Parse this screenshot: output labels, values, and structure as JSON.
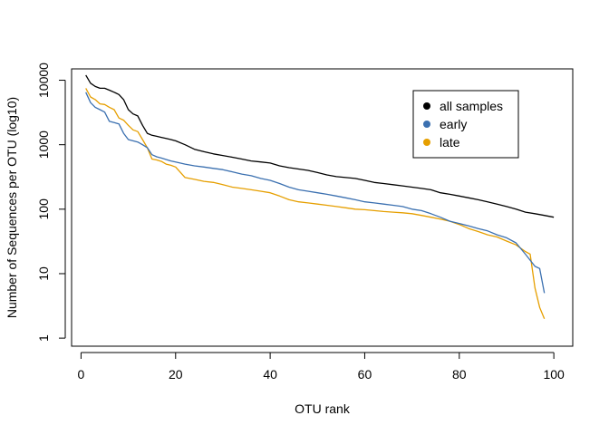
{
  "chart_data": {
    "type": "line",
    "title": "",
    "xlabel": "OTU rank",
    "ylabel": "Number of Sequences per OTU (log10)",
    "xlim": [
      -2,
      104
    ],
    "ylim": [
      0.75,
      15000
    ],
    "y_scale": "log10",
    "x_ticks": [
      0,
      20,
      40,
      60,
      80,
      100
    ],
    "y_ticks": [
      1,
      10,
      100,
      1000,
      10000
    ],
    "y_tick_labels": [
      "1",
      "10",
      "100",
      "1000",
      "10000"
    ],
    "grid": false,
    "legend_position": "top-right",
    "series": [
      {
        "name": "all samples",
        "color": "#000000",
        "x": [
          1,
          2,
          3,
          4,
          5,
          6,
          7,
          8,
          9,
          10,
          11,
          12,
          13,
          14,
          15,
          16,
          17,
          18,
          19,
          20,
          22,
          24,
          26,
          28,
          30,
          32,
          34,
          36,
          38,
          40,
          42,
          44,
          46,
          48,
          50,
          52,
          54,
          56,
          58,
          60,
          62,
          64,
          66,
          68,
          70,
          72,
          74,
          76,
          78,
          80,
          82,
          84,
          86,
          88,
          90,
          92,
          94,
          96,
          98,
          100
        ],
        "values": [
          12000,
          9000,
          8000,
          7500,
          7500,
          7000,
          6500,
          6000,
          5000,
          3500,
          3000,
          2800,
          2000,
          1500,
          1400,
          1350,
          1300,
          1250,
          1200,
          1150,
          1000,
          850,
          780,
          720,
          680,
          640,
          600,
          560,
          540,
          520,
          470,
          440,
          420,
          400,
          370,
          340,
          320,
          310,
          300,
          280,
          260,
          250,
          240,
          230,
          220,
          210,
          200,
          180,
          170,
          160,
          150,
          140,
          130,
          120,
          110,
          100,
          90,
          85,
          80,
          75
        ]
      },
      {
        "name": "early",
        "color": "#3b70b0",
        "x": [
          1,
          2,
          3,
          4,
          5,
          6,
          7,
          8,
          9,
          10,
          11,
          12,
          13,
          14,
          15,
          16,
          17,
          18,
          19,
          20,
          22,
          24,
          26,
          28,
          30,
          32,
          34,
          36,
          38,
          40,
          42,
          44,
          46,
          48,
          50,
          52,
          54,
          56,
          58,
          60,
          62,
          64,
          66,
          68,
          70,
          72,
          74,
          76,
          78,
          80,
          82,
          84,
          86,
          88,
          90,
          92,
          94,
          96,
          97,
          98
        ],
        "values": [
          6500,
          4500,
          3800,
          3500,
          3200,
          2300,
          2200,
          2100,
          1500,
          1200,
          1150,
          1100,
          1000,
          900,
          700,
          650,
          620,
          590,
          560,
          540,
          500,
          470,
          450,
          430,
          410,
          380,
          350,
          330,
          300,
          280,
          250,
          220,
          200,
          190,
          180,
          170,
          160,
          150,
          140,
          130,
          125,
          120,
          115,
          110,
          100,
          95,
          85,
          75,
          65,
          60,
          55,
          50,
          46,
          40,
          36,
          30,
          20,
          13,
          12,
          5
        ]
      },
      {
        "name": "late",
        "color": "#e69f00",
        "x": [
          1,
          2,
          3,
          4,
          5,
          6,
          7,
          8,
          9,
          10,
          11,
          12,
          13,
          14,
          15,
          16,
          17,
          18,
          19,
          20,
          22,
          24,
          26,
          28,
          30,
          32,
          34,
          36,
          38,
          40,
          42,
          44,
          46,
          48,
          50,
          52,
          54,
          56,
          58,
          60,
          62,
          64,
          66,
          68,
          70,
          72,
          74,
          76,
          78,
          80,
          82,
          84,
          86,
          88,
          90,
          92,
          94,
          95,
          96,
          97,
          98
        ],
        "values": [
          7500,
          5500,
          5000,
          4300,
          4200,
          3800,
          3500,
          2600,
          2400,
          2000,
          1700,
          1600,
          1200,
          900,
          600,
          580,
          550,
          500,
          480,
          450,
          310,
          290,
          270,
          260,
          240,
          220,
          210,
          200,
          190,
          180,
          160,
          140,
          130,
          125,
          120,
          115,
          110,
          105,
          100,
          98,
          95,
          92,
          90,
          88,
          85,
          80,
          75,
          70,
          65,
          58,
          50,
          45,
          40,
          37,
          32,
          28,
          22,
          20,
          6,
          3,
          2
        ]
      }
    ]
  }
}
